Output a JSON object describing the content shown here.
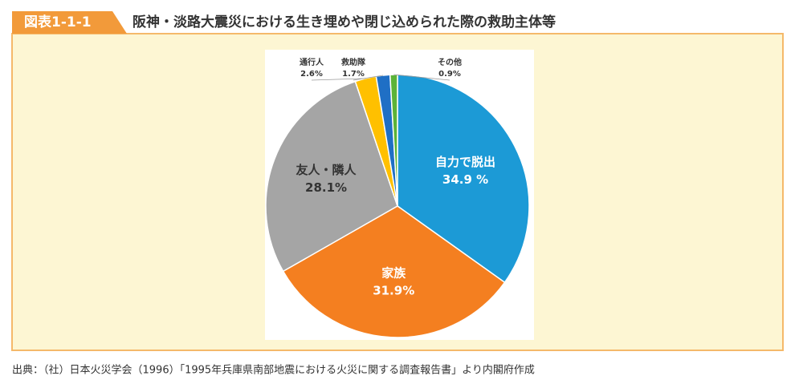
{
  "figure_label": "図表1-1-1",
  "chart_data": {
    "type": "pie",
    "title": "阪神・淡路大震災における生き埋めや閉じ込められた際の救助主体等",
    "categories": [
      "自力で脱出",
      "家族",
      "友人・隣人",
      "通行人",
      "救助隊",
      "その他"
    ],
    "values": [
      34.9,
      31.9,
      28.1,
      2.6,
      1.7,
      0.9
    ],
    "value_labels": [
      "34.9 %",
      "31.9%",
      "28.1%",
      "2.6%",
      "1.7%",
      "0.9%"
    ],
    "colors": [
      "#1c9ad6",
      "#f47f20",
      "#a5a5a5",
      "#ffc000",
      "#1f6fc5",
      "#5cb338"
    ]
  },
  "source": "出典：（社）日本火災学会（1996）「1995年兵庫県南部地震における火災に関する調査報告書」より内閣府作成"
}
